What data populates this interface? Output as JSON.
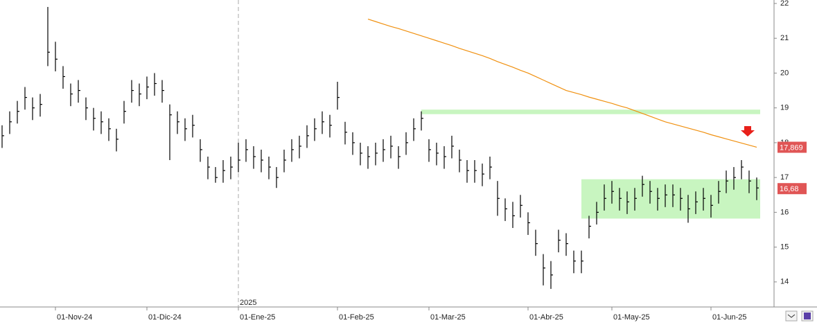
{
  "chart_data": {
    "type": "ohlc",
    "categories": [
      null,
      null,
      null,
      null,
      null,
      null,
      null,
      "01-Nov-24",
      null,
      null,
      null,
      null,
      null,
      null,
      null,
      null,
      null,
      null,
      null,
      "01-Dic-24",
      null,
      null,
      null,
      null,
      null,
      null,
      null,
      null,
      null,
      null,
      null,
      "01-Ene-25",
      null,
      null,
      null,
      null,
      null,
      null,
      null,
      null,
      null,
      null,
      null,
      null,
      "01-Feb-25",
      null,
      null,
      null,
      null,
      null,
      null,
      null,
      null,
      null,
      null,
      null,
      "01-Mar-25",
      null,
      null,
      null,
      null,
      null,
      null,
      null,
      null,
      null,
      null,
      null,
      null,
      "01-Abr-25",
      null,
      null,
      null,
      null,
      null,
      null,
      null,
      null,
      null,
      null,
      "01-May-25",
      null,
      null,
      null,
      null,
      null,
      null,
      null,
      null,
      null,
      null,
      null,
      null,
      "01-Jun-25",
      null,
      null,
      null,
      null,
      null,
      null
    ],
    "high": [
      18.5,
      18.9,
      19.2,
      19.6,
      19.3,
      19.4,
      21.9,
      20.9,
      20.2,
      19.7,
      19.8,
      19.3,
      19.0,
      18.9,
      18.7,
      18.4,
      19.2,
      19.8,
      19.7,
      19.9,
      20.0,
      19.8,
      19.1,
      18.9,
      18.7,
      18.8,
      18.1,
      17.6,
      17.3,
      17.5,
      17.6,
      18.0,
      18.1,
      17.9,
      17.8,
      17.6,
      17.3,
      17.8,
      18.1,
      18.2,
      18.5,
      18.7,
      18.9,
      18.8,
      19.75,
      18.6,
      18.3,
      18.0,
      17.9,
      18.0,
      18.1,
      18.2,
      17.9,
      18.3,
      18.7,
      18.9,
      18.1,
      18.0,
      17.9,
      18.2,
      17.8,
      17.5,
      17.5,
      17.4,
      17.6,
      16.9,
      16.4,
      16.3,
      16.5,
      16.0,
      15.5,
      14.8,
      14.6,
      15.5,
      15.4,
      14.9,
      14.9,
      15.9,
      16.3,
      16.8,
      16.9,
      16.7,
      16.6,
      16.7,
      17.05,
      16.9,
      16.7,
      16.8,
      16.8,
      16.7,
      16.5,
      16.6,
      16.7,
      16.5,
      16.9,
      17.2,
      17.3,
      17.5,
      17.2,
      17.0
    ],
    "low": [
      17.85,
      18.25,
      18.55,
      18.95,
      18.65,
      18.75,
      20.2,
      20.05,
      19.55,
      19.05,
      19.15,
      18.65,
      18.35,
      18.25,
      18.05,
      17.75,
      18.55,
      19.15,
      19.05,
      19.25,
      19.35,
      19.15,
      17.5,
      18.25,
      18.05,
      18.15,
      17.45,
      16.95,
      16.85,
      16.85,
      16.95,
      17.15,
      17.45,
      17.25,
      17.15,
      16.95,
      16.7,
      17.15,
      17.45,
      17.55,
      17.85,
      18.05,
      18.25,
      18.15,
      18.95,
      17.95,
      17.65,
      17.35,
      17.25,
      17.35,
      17.45,
      17.55,
      17.25,
      17.65,
      18.05,
      18.35,
      17.45,
      17.35,
      17.25,
      17.55,
      17.15,
      16.85,
      16.85,
      16.75,
      16.95,
      15.9,
      15.75,
      15.55,
      15.85,
      15.35,
      14.75,
      13.9,
      13.8,
      14.85,
      14.75,
      14.25,
      14.25,
      15.25,
      15.65,
      16.05,
      16.25,
      16.05,
      15.95,
      16.05,
      16.45,
      16.25,
      16.05,
      16.15,
      16.15,
      16.05,
      15.7,
      15.95,
      16.05,
      15.85,
      16.25,
      16.55,
      16.65,
      16.95,
      16.55,
      16.35
    ],
    "close": [
      18.2,
      18.6,
      18.9,
      19.3,
      19.0,
      19.1,
      20.6,
      20.4,
      19.9,
      19.4,
      19.5,
      19.0,
      18.7,
      18.6,
      18.4,
      18.1,
      18.9,
      19.5,
      19.4,
      19.6,
      19.7,
      19.5,
      18.8,
      18.6,
      18.4,
      18.5,
      17.8,
      17.3,
      17.0,
      17.2,
      17.3,
      17.5,
      17.8,
      17.6,
      17.5,
      17.3,
      17.0,
      17.5,
      17.8,
      17.9,
      18.2,
      18.4,
      18.6,
      18.5,
      19.3,
      18.3,
      18.0,
      17.7,
      17.6,
      17.7,
      17.8,
      17.9,
      17.6,
      18.0,
      18.4,
      18.7,
      17.8,
      17.7,
      17.6,
      17.9,
      17.5,
      17.2,
      17.2,
      17.1,
      17.3,
      16.4,
      16.1,
      15.9,
      16.2,
      15.7,
      15.1,
      14.4,
      14.2,
      15.2,
      15.1,
      14.6,
      14.6,
      15.6,
      16.0,
      16.4,
      16.6,
      16.4,
      16.3,
      16.4,
      16.8,
      16.6,
      16.4,
      16.5,
      16.5,
      16.4,
      16.1,
      16.3,
      16.4,
      16.2,
      16.6,
      16.9,
      17.0,
      17.3,
      16.9,
      16.7
    ],
    "color": "#000000",
    "ma": {
      "color": "#f0900f",
      "values": [
        null,
        null,
        null,
        null,
        null,
        null,
        null,
        null,
        null,
        null,
        null,
        null,
        null,
        null,
        null,
        null,
        null,
        null,
        null,
        null,
        null,
        null,
        null,
        null,
        null,
        null,
        null,
        null,
        null,
        null,
        null,
        null,
        null,
        null,
        null,
        null,
        null,
        null,
        null,
        null,
        null,
        null,
        null,
        null,
        null,
        null,
        null,
        null,
        21.55,
        21.48,
        21.41,
        21.34,
        21.28,
        21.21,
        21.14,
        21.07,
        21.0,
        20.93,
        20.86,
        20.79,
        20.71,
        20.64,
        20.57,
        20.5,
        20.42,
        20.33,
        20.25,
        20.17,
        20.08,
        20.0,
        19.9,
        19.8,
        19.7,
        19.6,
        19.5,
        19.44,
        19.38,
        19.31,
        19.25,
        19.19,
        19.13,
        19.06,
        19.0,
        18.92,
        18.84,
        18.76,
        18.68,
        18.6,
        18.54,
        18.48,
        18.42,
        18.36,
        18.3,
        18.23,
        18.17,
        18.11,
        18.05,
        17.99,
        17.93,
        17.87
      ]
    },
    "zones": [
      {
        "ylim": [
          18.82,
          18.95
        ],
        "start": 55
      },
      {
        "ylim": [
          15.82,
          16.95
        ],
        "start": 76
      }
    ],
    "zone_color": "#c8f5c0",
    "year_label": "2025",
    "price_labels": [
      {
        "value": 17.869,
        "label": "17,869"
      },
      {
        "value": 16.68,
        "label": "16,68"
      }
    ],
    "price_label_color": "#e05555",
    "ylim": [
      13.28,
      22.0
    ],
    "yticks": [
      14,
      15,
      16,
      17,
      18,
      19,
      20,
      21,
      22
    ],
    "grid": false
  }
}
